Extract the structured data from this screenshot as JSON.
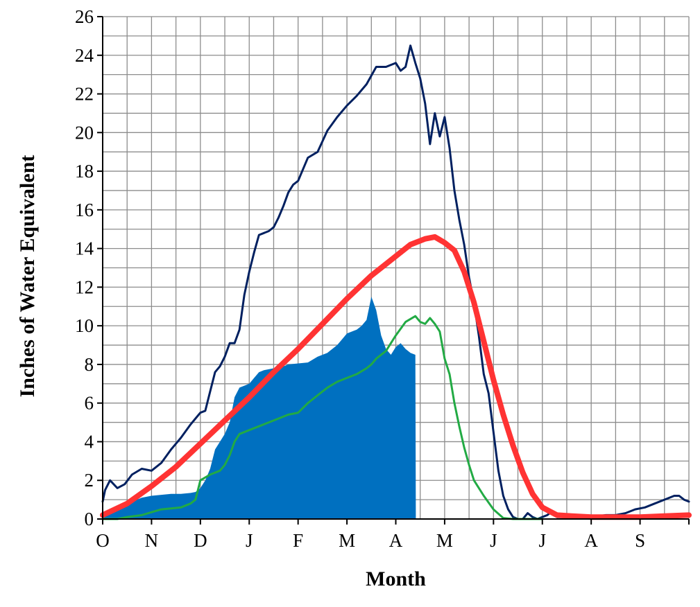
{
  "chart_data": {
    "type": "area",
    "xlabel": "Month",
    "ylabel": "Inches of Water Equivalent",
    "x_tick_labels": [
      "O",
      "N",
      "D",
      "J",
      "F",
      "M",
      "A",
      "M",
      "J",
      "J",
      "A",
      "S"
    ],
    "y_tick_labels": [
      "0",
      "2",
      "4",
      "6",
      "8",
      "10",
      "12",
      "14",
      "16",
      "18",
      "20",
      "22",
      "24",
      "26"
    ],
    "xlim": [
      0,
      12
    ],
    "ylim": [
      0,
      26
    ],
    "grid": true,
    "x_unit": "months since Oct 1",
    "series": [
      {
        "style": "filled area",
        "color": "#0070C0",
        "x": [
          0,
          0.1,
          0.2,
          0.4,
          0.6,
          0.8,
          1.0,
          1.2,
          1.4,
          1.6,
          1.8,
          1.9,
          2.0,
          2.1,
          2.2,
          2.3,
          2.4,
          2.5,
          2.6,
          2.7,
          2.8,
          2.9,
          3.0,
          3.1,
          3.2,
          3.3,
          3.4,
          3.5,
          3.6,
          3.7,
          3.8,
          4.0,
          4.2,
          4.4,
          4.6,
          4.8,
          4.9,
          5.0,
          5.2,
          5.3,
          5.4,
          5.5,
          5.6,
          5.7,
          5.8,
          5.9,
          6.0,
          6.1,
          6.2,
          6.3,
          6.4,
          6.41
        ],
        "y": [
          0.05,
          0.2,
          0.4,
          0.7,
          0.9,
          1.1,
          1.2,
          1.25,
          1.3,
          1.3,
          1.35,
          1.4,
          1.6,
          2.0,
          2.6,
          3.6,
          4.0,
          4.4,
          5.0,
          6.3,
          6.8,
          6.9,
          7.0,
          7.3,
          7.6,
          7.7,
          7.75,
          7.8,
          7.8,
          7.9,
          8.0,
          8.05,
          8.1,
          8.4,
          8.6,
          9.0,
          9.3,
          9.6,
          9.8,
          10.0,
          10.3,
          11.5,
          10.8,
          9.5,
          8.8,
          8.5,
          8.9,
          9.1,
          8.8,
          8.6,
          8.5,
          0
        ]
      },
      {
        "style": "thin line",
        "color": "#002060",
        "x": [
          0,
          0.05,
          0.15,
          0.3,
          0.45,
          0.6,
          0.8,
          1.0,
          1.2,
          1.4,
          1.6,
          1.8,
          1.9,
          2.0,
          2.1,
          2.2,
          2.3,
          2.4,
          2.5,
          2.6,
          2.7,
          2.8,
          2.9,
          3.0,
          3.1,
          3.2,
          3.3,
          3.4,
          3.5,
          3.6,
          3.7,
          3.8,
          3.9,
          4.0,
          4.2,
          4.4,
          4.6,
          4.8,
          5.0,
          5.2,
          5.4,
          5.6,
          5.8,
          6.0,
          6.1,
          6.2,
          6.3,
          6.4,
          6.5,
          6.6,
          6.7,
          6.8,
          6.9,
          7.0,
          7.1,
          7.2,
          7.3,
          7.4,
          7.5,
          7.6,
          7.7,
          7.8,
          7.9,
          8.0,
          8.1,
          8.2,
          8.3,
          8.4,
          8.5,
          8.6,
          8.7,
          8.8,
          8.9,
          9.0,
          9.1,
          9.2,
          9.3,
          9.4,
          9.5,
          9.6,
          9.7,
          9.8,
          10.0,
          10.3,
          10.5,
          10.7,
          10.9,
          11.1,
          11.3,
          11.5,
          11.7,
          11.8,
          11.9,
          12.0
        ],
        "y": [
          0.9,
          1.5,
          2.0,
          1.6,
          1.8,
          2.3,
          2.6,
          2.5,
          2.9,
          3.6,
          4.2,
          4.9,
          5.2,
          5.5,
          5.6,
          6.6,
          7.6,
          7.9,
          8.4,
          9.1,
          9.1,
          9.8,
          11.6,
          12.8,
          13.8,
          14.7,
          14.8,
          14.9,
          15.1,
          15.6,
          16.2,
          16.9,
          17.3,
          17.5,
          18.7,
          19.0,
          20.1,
          20.8,
          21.4,
          21.9,
          22.5,
          23.4,
          23.4,
          23.6,
          23.2,
          23.4,
          24.5,
          23.6,
          22.8,
          21.5,
          19.4,
          21.0,
          19.8,
          20.8,
          19.2,
          17.0,
          15.5,
          14.2,
          12.5,
          11.2,
          9.5,
          7.5,
          6.5,
          4.5,
          2.5,
          1.2,
          0.5,
          0.1,
          0,
          0,
          0.3,
          0.1,
          0,
          0.1,
          0.2,
          0.4,
          0.1,
          0.1,
          0.1,
          0.2,
          0.2,
          0.2,
          0.1,
          0.2,
          0.2,
          0.3,
          0.5,
          0.6,
          0.8,
          1.0,
          1.2,
          1.2,
          1.0,
          0.9
        ]
      },
      {
        "style": "thick line",
        "color": "#FF3333",
        "x": [
          0,
          0.5,
          1.0,
          1.5,
          2.0,
          2.5,
          3.0,
          3.5,
          4.0,
          4.5,
          5.0,
          5.5,
          6.0,
          6.3,
          6.6,
          6.8,
          7.0,
          7.2,
          7.4,
          7.6,
          7.8,
          8.0,
          8.2,
          8.4,
          8.6,
          8.8,
          9.0,
          9.3,
          9.6,
          10.0,
          10.5,
          11.0,
          11.5,
          12.0
        ],
        "y": [
          0.2,
          0.8,
          1.7,
          2.7,
          3.9,
          5.1,
          6.3,
          7.6,
          8.8,
          10.1,
          11.4,
          12.6,
          13.6,
          14.2,
          14.5,
          14.6,
          14.3,
          13.9,
          12.8,
          11.2,
          9.2,
          7.2,
          5.4,
          3.8,
          2.4,
          1.3,
          0.6,
          0.2,
          0.15,
          0.1,
          0.1,
          0.1,
          0.15,
          0.2
        ]
      },
      {
        "style": "thin line",
        "color": "#22AA44",
        "x": [
          0,
          0.3,
          0.5,
          0.8,
          1.0,
          1.2,
          1.4,
          1.6,
          1.8,
          1.9,
          2.0,
          2.2,
          2.4,
          2.5,
          2.6,
          2.7,
          2.8,
          3.0,
          3.2,
          3.4,
          3.6,
          3.8,
          4.0,
          4.2,
          4.4,
          4.6,
          4.8,
          5.0,
          5.2,
          5.4,
          5.5,
          5.6,
          5.8,
          6.0,
          6.2,
          6.4,
          6.5,
          6.6,
          6.7,
          6.8,
          6.9,
          7.0,
          7.1,
          7.2,
          7.3,
          7.4,
          7.5,
          7.6,
          7.8,
          8.0,
          8.2,
          8.4,
          8.5,
          8.6,
          8.8,
          9.0
        ],
        "y": [
          0,
          0,
          0.1,
          0.2,
          0.35,
          0.5,
          0.55,
          0.6,
          0.8,
          1.0,
          2.0,
          2.3,
          2.5,
          2.8,
          3.3,
          4.0,
          4.4,
          4.6,
          4.8,
          5.0,
          5.2,
          5.4,
          5.5,
          6.0,
          6.4,
          6.8,
          7.1,
          7.3,
          7.5,
          7.8,
          8.0,
          8.3,
          8.7,
          9.5,
          10.2,
          10.5,
          10.2,
          10.1,
          10.4,
          10.1,
          9.7,
          8.3,
          7.5,
          6.0,
          4.8,
          3.7,
          2.8,
          2.0,
          1.2,
          0.5,
          0.05,
          0,
          0,
          0,
          0,
          0
        ]
      }
    ]
  }
}
